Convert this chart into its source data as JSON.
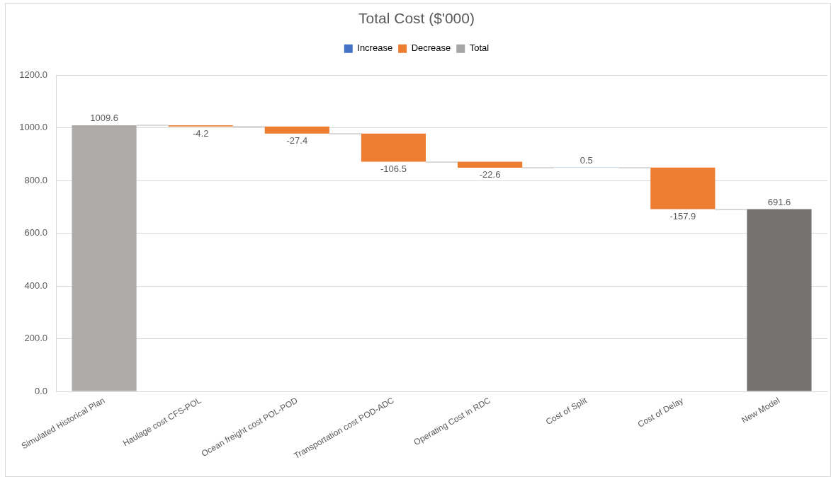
{
  "chart_data": {
    "type": "bar",
    "title": "Total Cost ($'000)",
    "categories": [
      "Simulated Historical Plan",
      "Haulage cost CFS-POL",
      "Ocean freight cost POL-POD",
      "Transportation cost POD-ADC",
      "Operating Cost in RDC",
      "Cost of Split",
      "Cost of Delay",
      "New Model"
    ],
    "series": [
      {
        "name": "Increase",
        "color": "#4472c4",
        "base": [
          null,
          null,
          null,
          null,
          null,
          848.9,
          null,
          null
        ],
        "values": [
          null,
          null,
          null,
          null,
          null,
          0.5,
          null,
          null
        ]
      },
      {
        "name": "Decrease",
        "color": "#ed7d31",
        "base": [
          null,
          1009.6,
          1005.4,
          978.0,
          871.5,
          null,
          849.4,
          null
        ],
        "values": [
          null,
          -4.2,
          -27.4,
          -106.5,
          -22.6,
          null,
          -157.9,
          null
        ]
      },
      {
        "name": "Total",
        "color": "#a5a5a5",
        "colors": [
          "#aeaaaa",
          null,
          null,
          null,
          null,
          null,
          null,
          "#767171"
        ],
        "base": [
          0,
          null,
          null,
          null,
          null,
          null,
          null,
          0
        ],
        "values": [
          1009.6,
          null,
          null,
          null,
          null,
          null,
          null,
          691.6
        ]
      }
    ],
    "ylim": [
      0,
      1200
    ],
    "yticks": [
      {
        "value": 0,
        "label": "0.0"
      },
      {
        "value": 200,
        "label": "200.0"
      },
      {
        "value": 400,
        "label": "400.0"
      },
      {
        "value": 600,
        "label": "600.0"
      },
      {
        "value": 800,
        "label": "800.0"
      },
      {
        "value": 1000,
        "label": "1000.0"
      },
      {
        "value": 1200,
        "label": "1200.0"
      }
    ],
    "grid": "y",
    "legend": "top",
    "data_labels": true
  }
}
